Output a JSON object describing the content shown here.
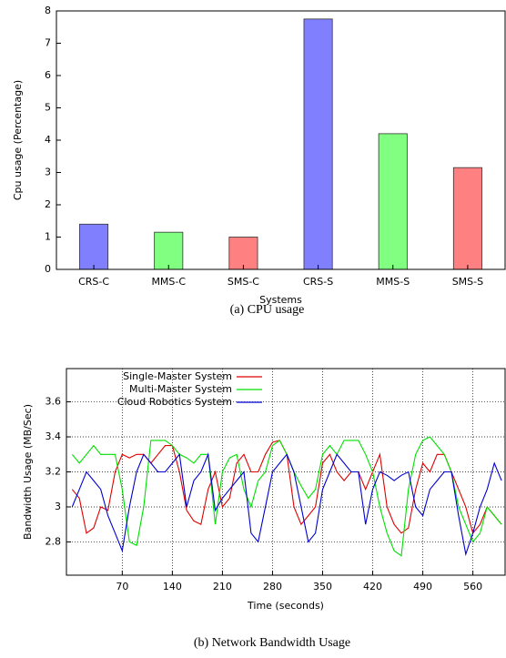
{
  "chart_data": [
    {
      "type": "bar",
      "caption": "(a) CPU usage",
      "xlabel": "Systems",
      "ylabel": "Cpu usage (Percentage)",
      "categories": [
        "CRS-C",
        "MMS-C",
        "SMS-C",
        "CRS-S",
        "MMS-S",
        "SMS-S"
      ],
      "values": [
        1.4,
        1.15,
        1.0,
        7.75,
        4.2,
        3.15
      ],
      "colors": [
        "#8080ff",
        "#80ff80",
        "#ff8080",
        "#8080ff",
        "#80ff80",
        "#ff8080"
      ],
      "ylim": [
        0,
        8
      ],
      "yticks": [
        0,
        1,
        2,
        3,
        4,
        5,
        6,
        7,
        8
      ],
      "grid": false
    },
    {
      "type": "line",
      "caption": "(b) Network Bandwidth Usage",
      "xlabel": "Time (seconds)",
      "ylabel": "Bandwidth Usage (MB/Sec)",
      "x": [
        0,
        10,
        20,
        30,
        40,
        50,
        60,
        70,
        80,
        90,
        100,
        110,
        120,
        130,
        140,
        150,
        160,
        170,
        180,
        190,
        200,
        210,
        220,
        230,
        240,
        250,
        260,
        270,
        280,
        290,
        300,
        310,
        320,
        330,
        340,
        350,
        360,
        370,
        380,
        390,
        400,
        410,
        420,
        430,
        440,
        450,
        460,
        470,
        480,
        490,
        500,
        510,
        520,
        530,
        540,
        550,
        560,
        570,
        580,
        590,
        600
      ],
      "series": [
        {
          "name": "Single-Master System",
          "color": "#e00000",
          "values": [
            3.1,
            3.05,
            2.85,
            2.88,
            3.0,
            2.98,
            3.2,
            3.3,
            3.28,
            3.3,
            3.3,
            3.25,
            3.3,
            3.35,
            3.35,
            3.2,
            2.98,
            2.92,
            2.9,
            3.1,
            3.2,
            3.0,
            3.05,
            3.25,
            3.3,
            3.2,
            3.2,
            3.3,
            3.37,
            3.38,
            3.3,
            3.0,
            2.9,
            2.95,
            3.0,
            3.25,
            3.3,
            3.2,
            3.15,
            3.2,
            3.2,
            3.1,
            3.2,
            3.3,
            3.0,
            2.9,
            2.85,
            2.88,
            3.1,
            3.25,
            3.2,
            3.3,
            3.3,
            3.2,
            3.1,
            3.0,
            2.85,
            2.9,
            3.0,
            2.95,
            2.9
          ]
        },
        {
          "name": "Multi-Master System",
          "color": "#00e000",
          "values": [
            3.3,
            3.25,
            3.3,
            3.35,
            3.3,
            3.3,
            3.3,
            3.1,
            2.8,
            2.78,
            3.0,
            3.38,
            3.38,
            3.38,
            3.35,
            3.3,
            3.28,
            3.25,
            3.3,
            3.3,
            2.9,
            3.2,
            3.28,
            3.3,
            3.1,
            3.0,
            3.15,
            3.2,
            3.35,
            3.38,
            3.3,
            3.2,
            3.12,
            3.05,
            3.1,
            3.3,
            3.35,
            3.3,
            3.38,
            3.38,
            3.38,
            3.3,
            3.2,
            3.0,
            2.85,
            2.75,
            2.72,
            3.1,
            3.3,
            3.38,
            3.4,
            3.35,
            3.3,
            3.2,
            3.0,
            2.9,
            2.8,
            2.85,
            3.0,
            2.95,
            2.9
          ]
        },
        {
          "name": "Cloud Robotics System",
          "color": "#0000d0",
          "values": [
            3.0,
            3.1,
            3.2,
            3.15,
            3.1,
            2.95,
            2.85,
            2.75,
            3.0,
            3.2,
            3.3,
            3.25,
            3.2,
            3.2,
            3.25,
            3.3,
            3.0,
            3.15,
            3.2,
            3.3,
            2.98,
            3.05,
            3.1,
            3.15,
            3.2,
            2.85,
            2.8,
            3.0,
            3.2,
            3.25,
            3.3,
            3.2,
            3.0,
            2.8,
            2.85,
            3.1,
            3.2,
            3.3,
            3.25,
            3.2,
            3.2,
            2.9,
            3.1,
            3.2,
            3.18,
            3.15,
            3.18,
            3.2,
            3.0,
            2.95,
            3.1,
            3.15,
            3.2,
            3.2,
            2.95,
            2.73,
            2.85,
            3.0,
            3.1,
            3.25,
            3.15
          ]
        }
      ],
      "xlim": [
        -8,
        605
      ],
      "xticks": [
        70,
        140,
        210,
        280,
        350,
        420,
        490,
        560
      ],
      "ylim": [
        2.61,
        3.79
      ],
      "yticks": [
        2.8,
        3,
        3.2,
        3.4,
        3.6
      ],
      "grid": true,
      "legend": "top-left"
    }
  ]
}
